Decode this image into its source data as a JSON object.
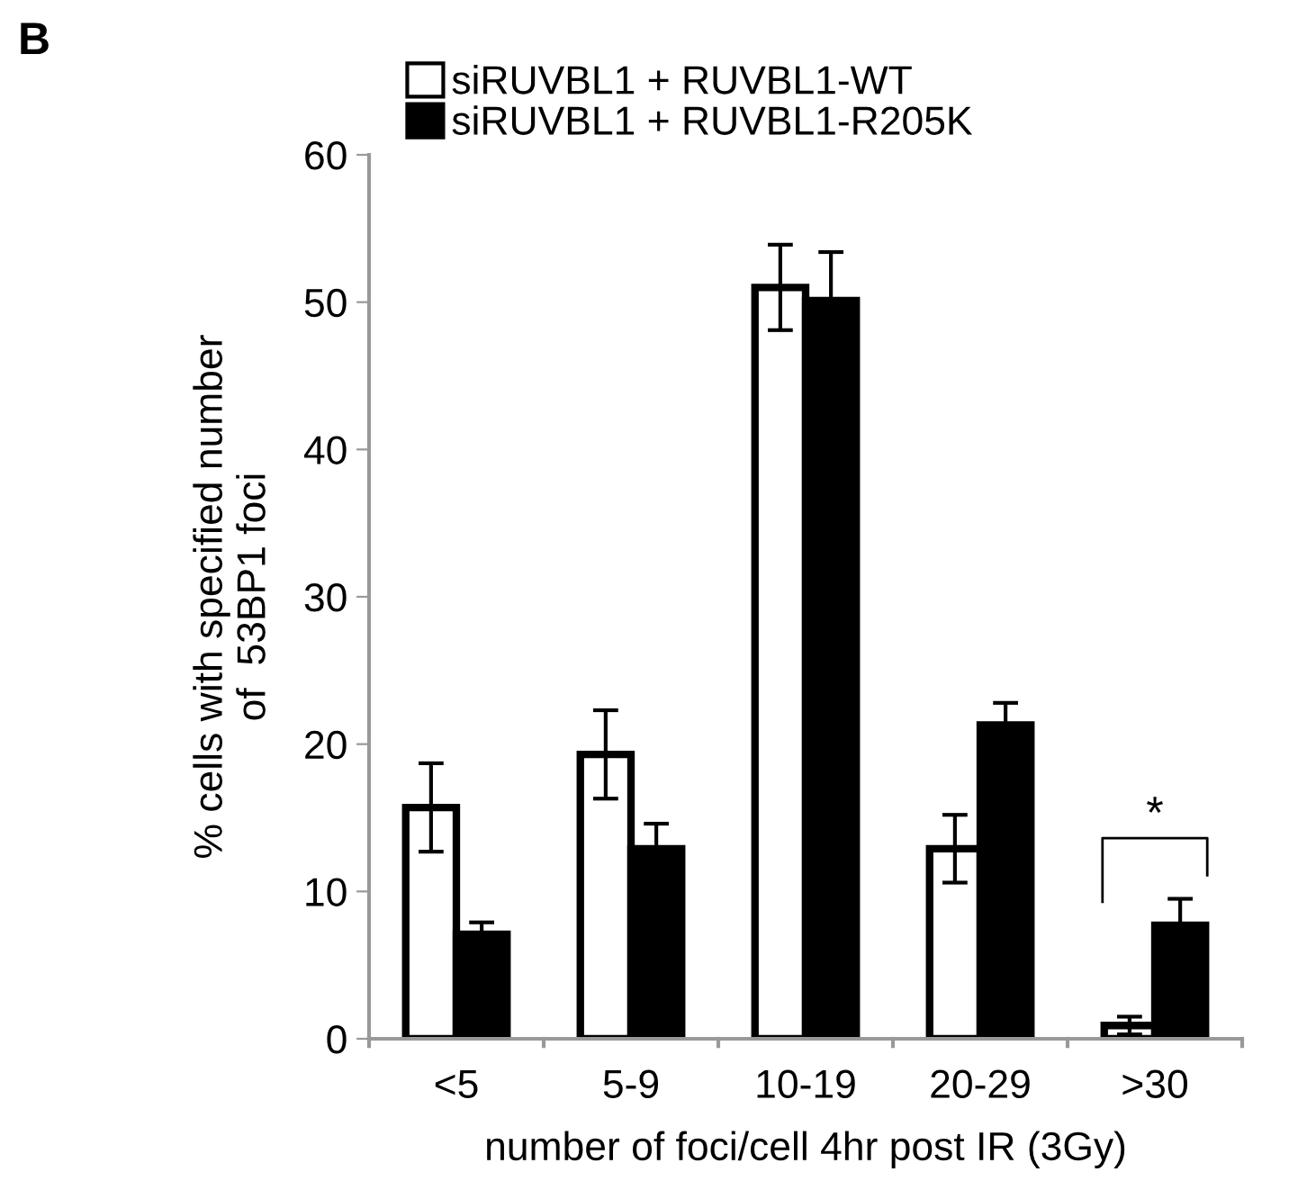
{
  "chart_data": {
    "type": "bar",
    "xlabel": "number of foci/cell 4hr post IR (3Gy)",
    "ylabel": "% cells with specified number\nof  53BP1 foci",
    "categories": [
      "<5",
      "5-9",
      "10-19",
      "20-29",
      ">30"
    ],
    "series": [
      {
        "name": "siRUVBL1 + RUVBL1-WT",
        "color": "#ffffff",
        "values": [
          15.7,
          19.3,
          51.0,
          12.9,
          0.9
        ],
        "errors": [
          3.0,
          3.0,
          2.9,
          2.3,
          0.6
        ]
      },
      {
        "name": "siRUVBL1 + RUVBL1-R205K",
        "color": "#000000",
        "values": [
          7.1,
          12.9,
          50.1,
          21.3,
          7.7
        ],
        "errors": [
          0.8,
          1.7,
          3.3,
          1.5,
          1.8
        ]
      }
    ],
    "ylim": [
      0,
      60
    ],
    "yticks": [
      0,
      10,
      20,
      30,
      40,
      50,
      60
    ],
    "grid": false,
    "legend": "top left",
    "annotations": [
      "B",
      "*"
    ]
  }
}
